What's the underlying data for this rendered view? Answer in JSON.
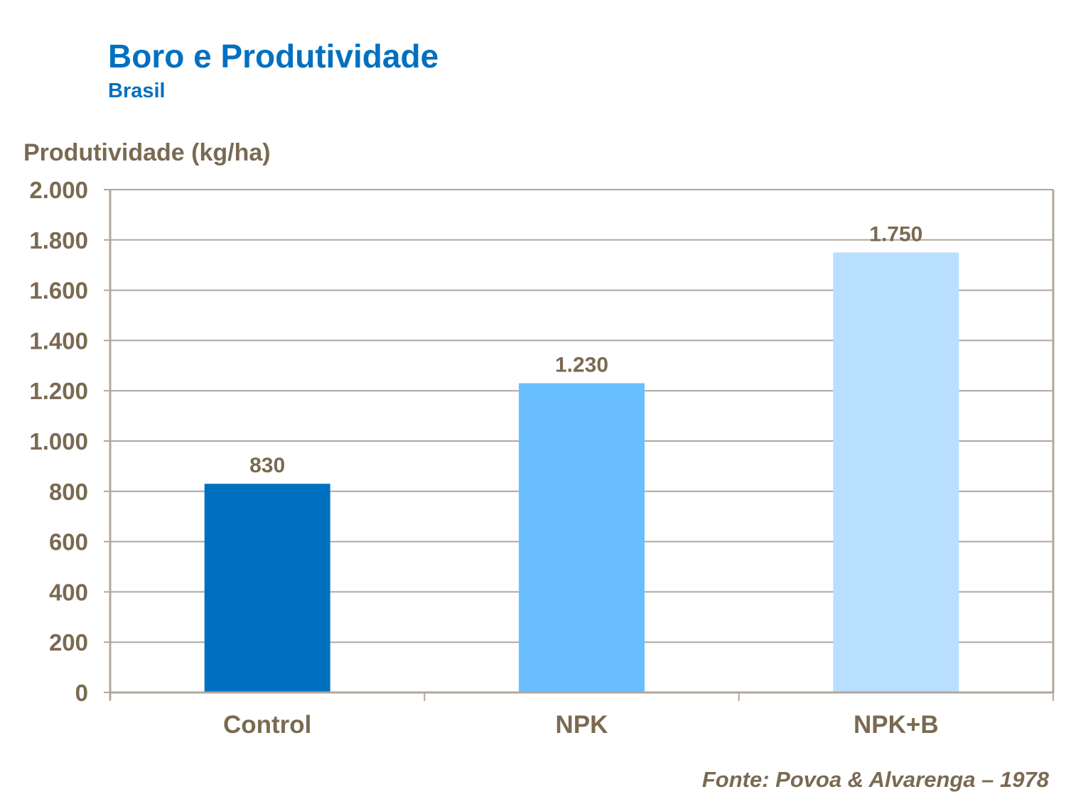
{
  "chart_data": {
    "type": "bar",
    "title": "Boro e Produtividade",
    "subtitle": "Brasil",
    "ylabel": "Produtividade (kg/ha)",
    "xlabel": "",
    "categories": [
      "Control",
      "NPK",
      "NPK+B"
    ],
    "values": [
      830,
      1230,
      1750
    ],
    "data_labels": [
      "830",
      "1.230",
      "1.750"
    ],
    "bar_colors": [
      "#0070C0",
      "#69BEFF",
      "#B8DFFF"
    ],
    "ylim": [
      0,
      2000
    ],
    "yticks": [
      0,
      200,
      400,
      600,
      800,
      1000,
      1200,
      1400,
      1600,
      1800,
      2000
    ],
    "ytick_labels": [
      "0",
      "200",
      "400",
      "600",
      "800",
      "1.000",
      "1.200",
      "1.400",
      "1.600",
      "1.800",
      "2.000"
    ],
    "grid": true,
    "legend": "none",
    "source": "Fonte: Povoa & Alvarenga – 1978",
    "text_color": "#7A6A52",
    "title_color": "#0070C0"
  }
}
